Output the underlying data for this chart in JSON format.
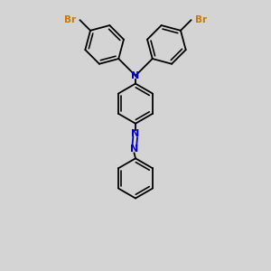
{
  "background_color": "#d4d4d4",
  "bond_color": "#000000",
  "nitrogen_color": "#0000cc",
  "bromine_color": "#cc7700",
  "lw": 1.3,
  "figsize": [
    3.0,
    3.0
  ],
  "dpi": 100,
  "xlim": [
    0,
    10
  ],
  "ylim": [
    0,
    10
  ],
  "ring_r": 0.75,
  "N_fontsize": 8,
  "Br_fontsize": 7.5
}
